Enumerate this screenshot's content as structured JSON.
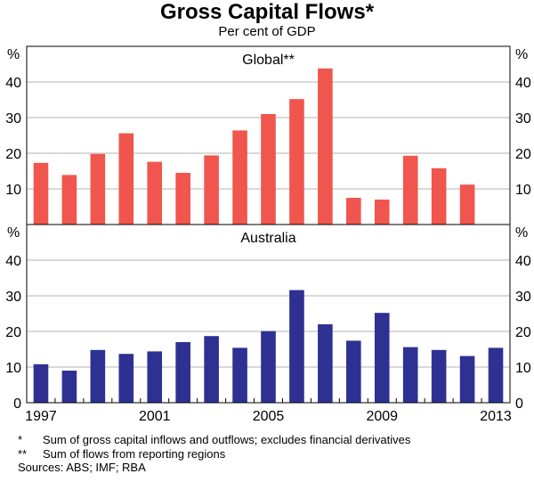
{
  "chart_data": {
    "type": "bar",
    "title": "Gross Capital Flows*",
    "subtitle": "Per cent of GDP",
    "unit": "%",
    "x": [
      1997,
      1998,
      1999,
      2000,
      2001,
      2002,
      2003,
      2004,
      2005,
      2006,
      2007,
      2008,
      2009,
      2010,
      2011,
      2012,
      2013
    ],
    "x_tick_labels": [
      "1997",
      "2001",
      "2005",
      "2009",
      "2013"
    ],
    "y_tick_labels": [
      "0",
      "10",
      "20",
      "30",
      "40"
    ],
    "panels": [
      {
        "name": "Global**",
        "color": "#f0564e",
        "ylim": [
          0,
          50
        ],
        "x": [
          1997,
          1998,
          1999,
          2000,
          2001,
          2002,
          2003,
          2004,
          2005,
          2006,
          2007,
          2008,
          2009,
          2010,
          2011,
          2012
        ],
        "values": [
          17.3,
          13.9,
          19.8,
          25.6,
          17.6,
          14.5,
          19.4,
          26.4,
          31.0,
          35.2,
          43.8,
          7.5,
          7.0,
          19.3,
          15.8,
          11.2
        ]
      },
      {
        "name": "Australia",
        "color": "#2e3192",
        "ylim": [
          0,
          50
        ],
        "x": [
          1997,
          1998,
          1999,
          2000,
          2001,
          2002,
          2003,
          2004,
          2005,
          2006,
          2007,
          2008,
          2009,
          2010,
          2011,
          2012,
          2013
        ],
        "values": [
          10.8,
          9.0,
          14.8,
          13.7,
          14.4,
          17.0,
          18.7,
          15.4,
          20.1,
          31.6,
          22.0,
          17.4,
          25.2,
          15.6,
          14.8,
          13.1,
          15.4
        ]
      }
    ],
    "grid": true,
    "legend": "none"
  },
  "footnotes": [
    {
      "mark": "*",
      "text": "Sum of gross capital inflows and outflows; excludes financial derivatives"
    },
    {
      "mark": "**",
      "text": "Sum of flows from reporting regions"
    }
  ],
  "sources": "Sources: ABS; IMF; RBA"
}
